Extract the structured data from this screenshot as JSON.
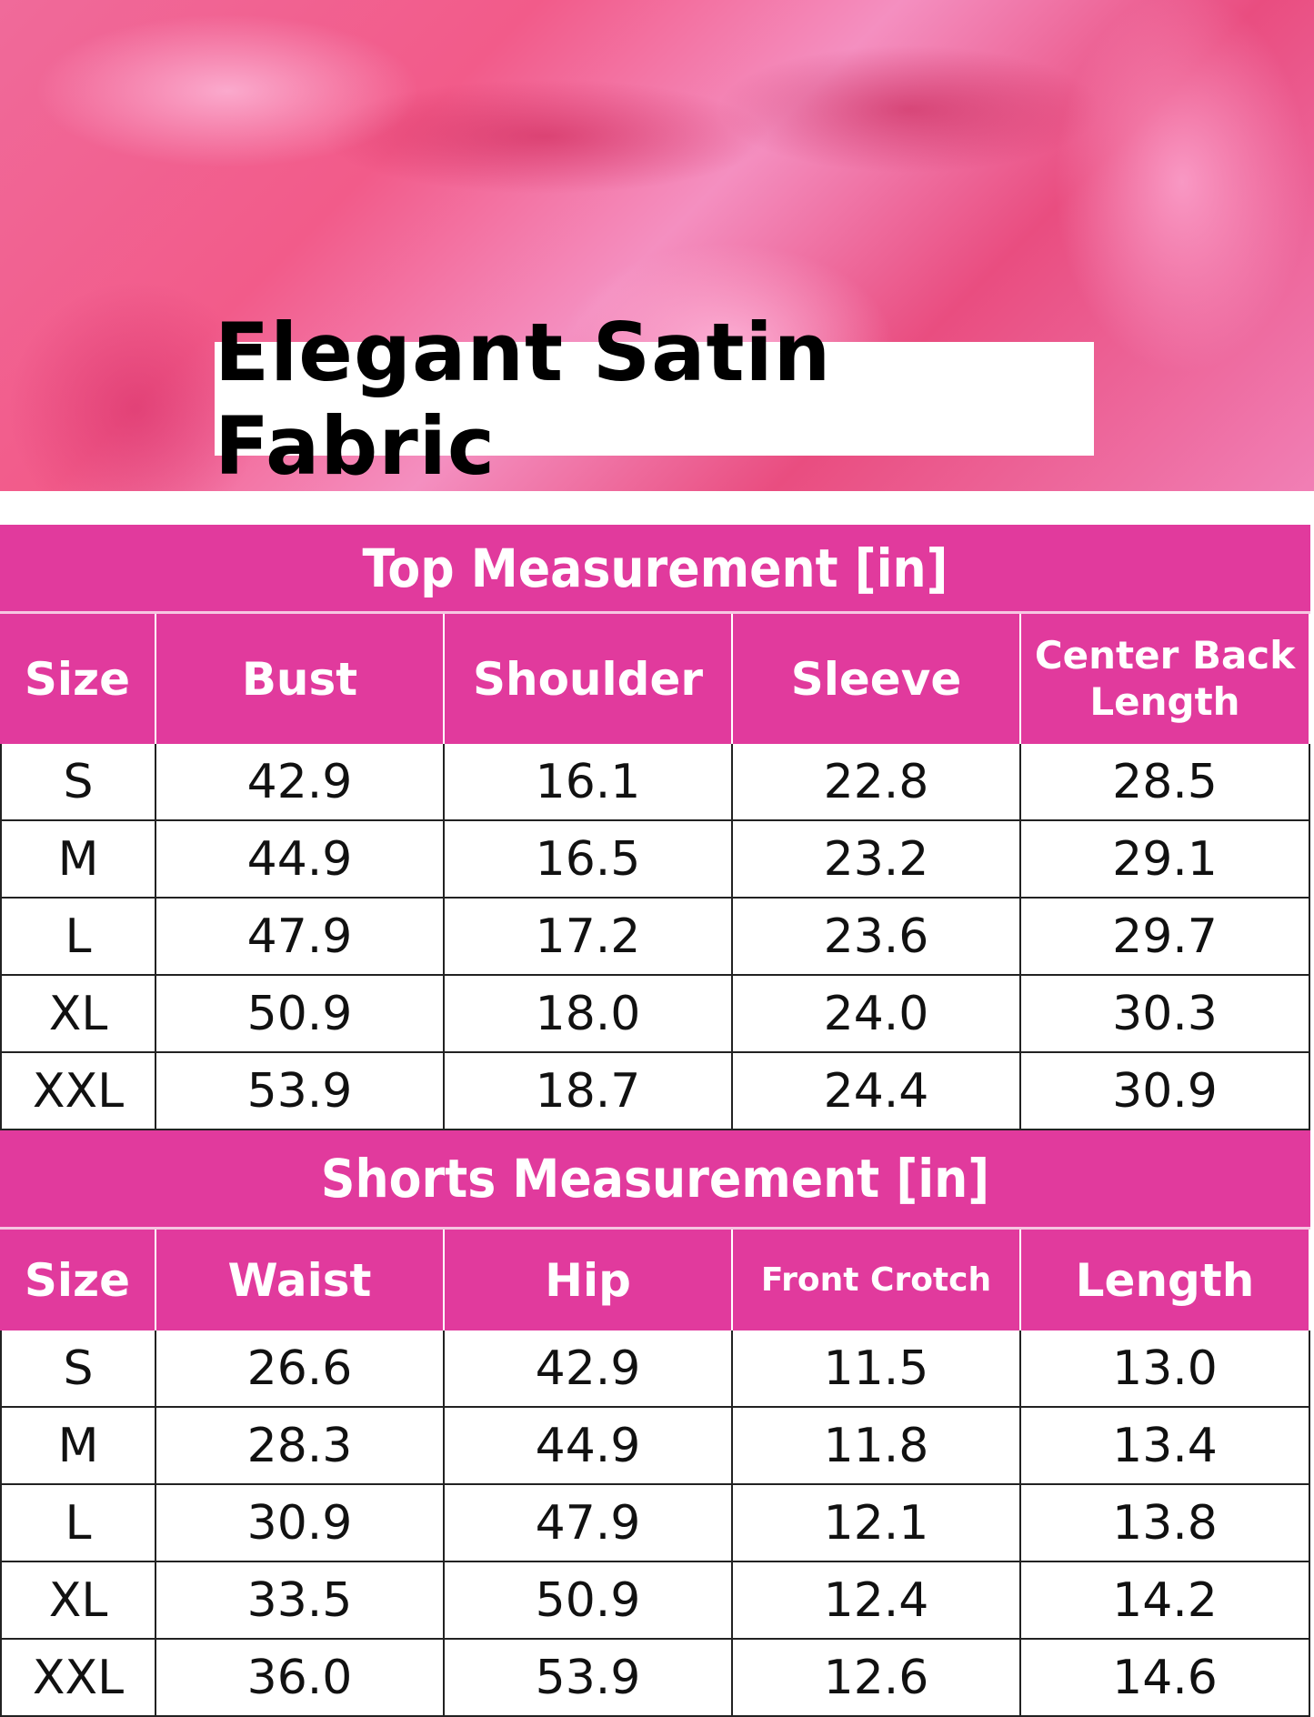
{
  "banner": {
    "title": "Elegant Satin Fabric",
    "colors": {
      "fabric": "#f25b8a"
    }
  },
  "accent": "#e13a9d",
  "top": {
    "title": "Top Measurement [in]",
    "headers": [
      "Size",
      "Bust",
      "Shoulder",
      "Sleeve",
      "Center Back Length"
    ],
    "rows": [
      [
        "S",
        "42.9",
        "16.1",
        "22.8",
        "28.5"
      ],
      [
        "M",
        "44.9",
        "16.5",
        "23.2",
        "29.1"
      ],
      [
        "L",
        "47.9",
        "17.2",
        "23.6",
        "29.7"
      ],
      [
        "XL",
        "50.9",
        "18.0",
        "24.0",
        "30.3"
      ],
      [
        "XXL",
        "53.9",
        "18.7",
        "24.4",
        "30.9"
      ]
    ]
  },
  "shorts": {
    "title": "Shorts Measurement [in]",
    "headers": [
      "Size",
      "Waist",
      "Hip",
      "Front Crotch",
      "Length"
    ],
    "rows": [
      [
        "S",
        "26.6",
        "42.9",
        "11.5",
        "13.0"
      ],
      [
        "M",
        "28.3",
        "44.9",
        "11.8",
        "13.4"
      ],
      [
        "L",
        "30.9",
        "47.9",
        "12.1",
        "13.8"
      ],
      [
        "XL",
        "33.5",
        "50.9",
        "12.4",
        "14.2"
      ],
      [
        "XXL",
        "36.0",
        "53.9",
        "12.6",
        "14.6"
      ]
    ]
  }
}
